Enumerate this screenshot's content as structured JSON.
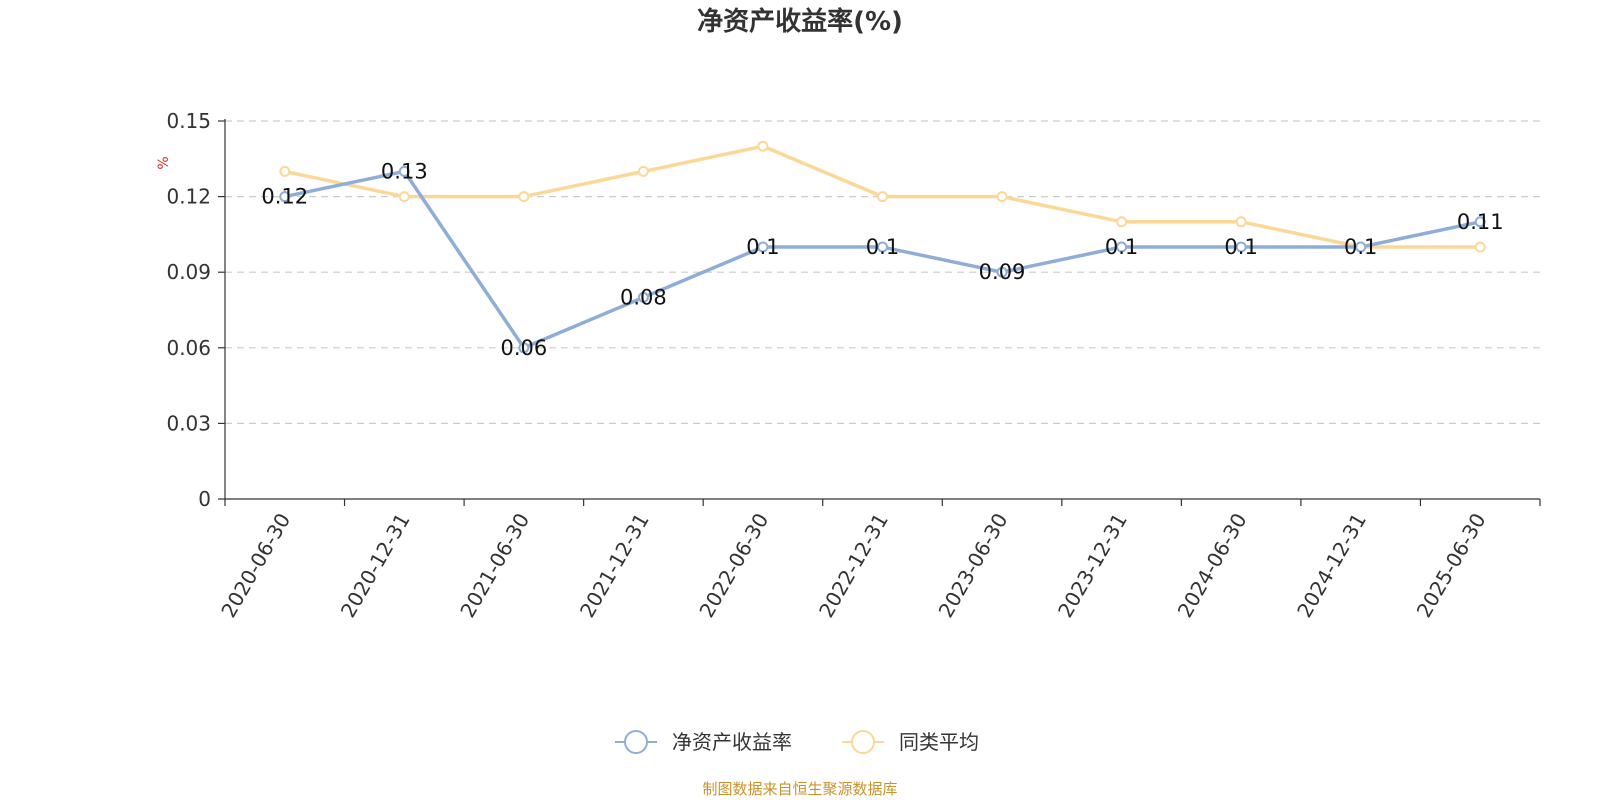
{
  "chart_data": {
    "type": "line",
    "title": "净资产收益率(%)",
    "ylabel": "%",
    "xlabel": "",
    "categories": [
      "2020-06-30",
      "2020-12-31",
      "2021-06-30",
      "2021-12-31",
      "2022-06-30",
      "2022-12-31",
      "2023-06-30",
      "2023-12-31",
      "2024-06-30",
      "2024-12-31",
      "2025-06-30"
    ],
    "ylim": [
      0,
      0.15
    ],
    "yticks": [
      "0",
      "0.03",
      "0.06",
      "0.09",
      "0.12",
      "0.15"
    ],
    "grid": true,
    "legend_position": "bottom-center",
    "series": [
      {
        "name": "净资产收益率",
        "color": "#8eaed8",
        "values": [
          0.12,
          0.13,
          0.06,
          0.08,
          0.1,
          0.1,
          0.09,
          0.1,
          0.1,
          0.1,
          0.11
        ],
        "labels": [
          "0.12",
          "0.13",
          "0.06",
          "0.08",
          "0.1",
          "0.1",
          "0.09",
          "0.1",
          "0.1",
          "0.1",
          "0.11"
        ]
      },
      {
        "name": "同类平均",
        "color": "#fbd898",
        "values": [
          0.13,
          0.12,
          0.12,
          0.13,
          0.14,
          0.12,
          0.12,
          0.11,
          0.11,
          0.1,
          0.1
        ]
      }
    ]
  },
  "source_note": "制图数据来自恒生聚源数据库"
}
